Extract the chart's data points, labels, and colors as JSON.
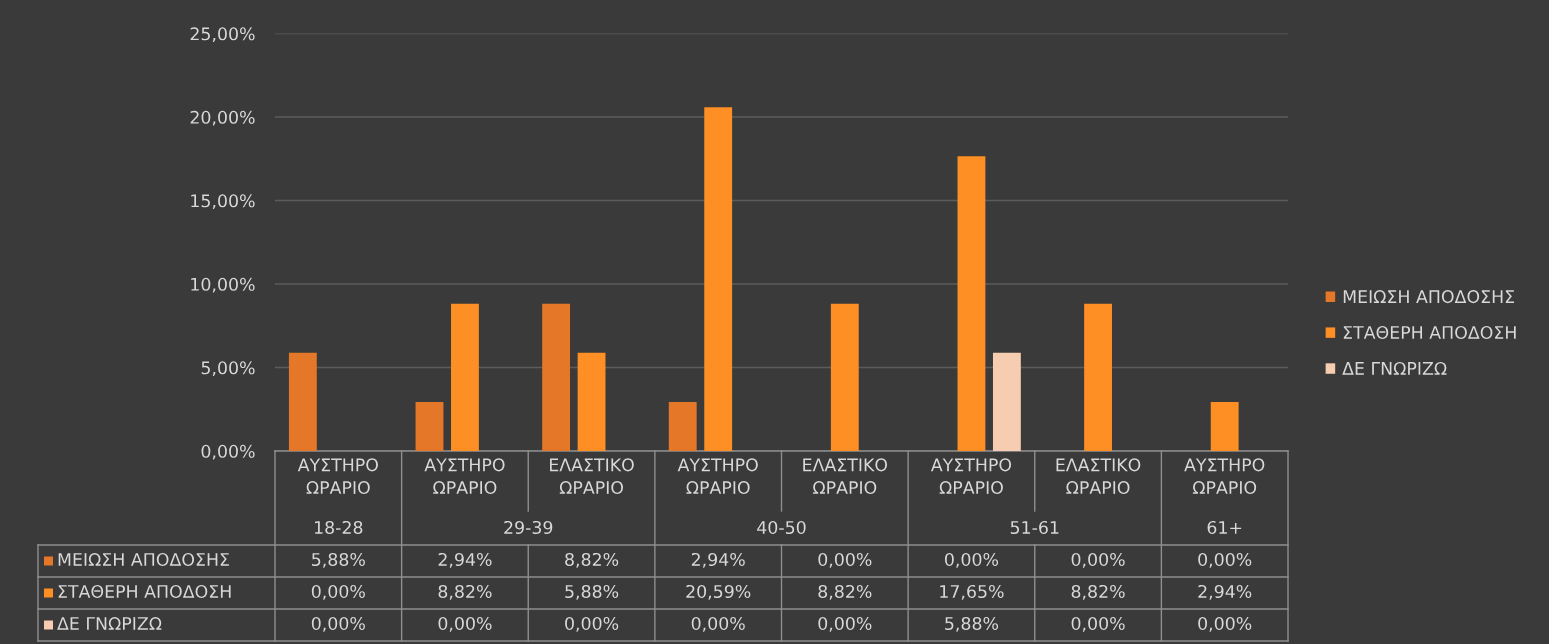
{
  "chart_data": {
    "type": "bar",
    "categories": [
      "ΑΥΣΤΗΡΟ ΩΡΑΡΙΟ",
      "ΑΥΣΤΗΡΟ ΩΡΑΡΙΟ",
      "ΕΛΑΣΤΙΚΟ ΩΡΑΡΙΟ",
      "ΑΥΣΤΗΡΟ ΩΡΑΡΙΟ",
      "ΕΛΑΣΤΙΚΟ ΩΡΑΡΙΟ",
      "ΑΥΣΤΗΡΟ ΩΡΑΡΙΟ",
      "ΕΛΑΣΤΙΚΟ ΩΡΑΡΙΟ",
      "ΑΥΣΤΗΡΟ ΩΡΑΡΙΟ"
    ],
    "series": [
      {
        "name": "ΜΕΙΩΣΗ ΑΠΟΔΟΣΗΣ",
        "color": "#e47728",
        "values": [
          5.88,
          2.94,
          8.82,
          2.94,
          0,
          0,
          0,
          0
        ],
        "value_labels": [
          "5,88%",
          "2,94%",
          "8,82%",
          "2,94%",
          "0,00%",
          "0,00%",
          "0,00%",
          "0,00%"
        ]
      },
      {
        "name": "ΣΤΑΘΕΡΗ ΑΠΟΔΟΣΗ",
        "color": "#fd8f24",
        "values": [
          0,
          8.82,
          5.88,
          20.59,
          8.82,
          17.65,
          8.82,
          2.94
        ],
        "value_labels": [
          "0,00%",
          "8,82%",
          "5,88%",
          "20,59%",
          "8,82%",
          "17,65%",
          "8,82%",
          "2,94%"
        ]
      },
      {
        "name": "ΔΕ ΓΝΩΡΙΖΩ",
        "color": "#f7cdb1",
        "values": [
          0,
          0,
          0,
          0,
          0,
          5.88,
          0,
          0
        ],
        "value_labels": [
          "0,00%",
          "0,00%",
          "0,00%",
          "0,00%",
          "0,00%",
          "5,88%",
          "0,00%",
          "0,00%"
        ]
      }
    ],
    "ylim": [
      0,
      25
    ],
    "yticks": [
      {
        "value": 0,
        "label": "0,00%"
      },
      {
        "value": 5,
        "label": "5,00%"
      },
      {
        "value": 10,
        "label": "10,00%"
      },
      {
        "value": 15,
        "label": "15,00%"
      },
      {
        "value": 20,
        "label": "20,00%"
      },
      {
        "value": 25,
        "label": "25,00%"
      }
    ],
    "grid": "y",
    "legend": "right",
    "annotations": [
      "18-28",
      "29-39",
      "40-50",
      "51-61",
      "61+"
    ]
  }
}
